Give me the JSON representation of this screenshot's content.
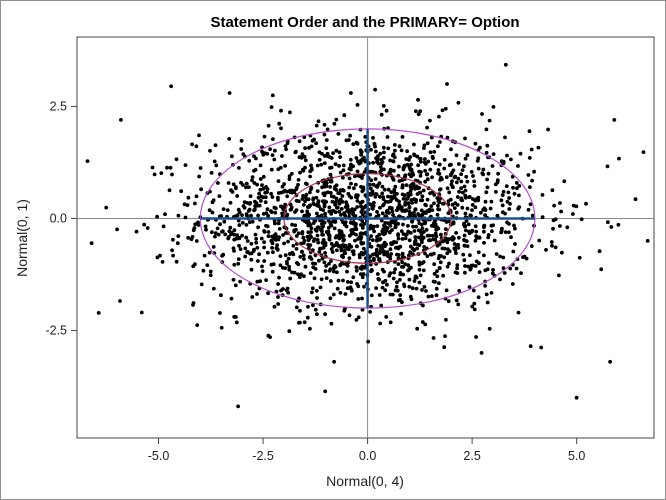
{
  "chart_data": {
    "type": "scatter",
    "title": "Statement Order and the PRIMARY= Option",
    "xlabel": "Normal(0, 4)",
    "ylabel": "Normal(0, 1)",
    "xlim": [
      -6.95,
      6.85
    ],
    "ylim": [
      -4.9,
      4.05
    ],
    "xticks": [
      -5.0,
      -2.5,
      0.0,
      2.5,
      5.0
    ],
    "yticks": [
      -2.5,
      0.0,
      2.5
    ],
    "x_tick_labels": [
      "-5.0",
      "-2.5",
      "0.0",
      "2.5",
      "5.0"
    ],
    "y_tick_labels": [
      "-2.5",
      "0.0",
      "2.5"
    ],
    "reference_lines": {
      "x": 0,
      "y": 0
    },
    "grid": false,
    "point_count": 2000,
    "distribution": {
      "x_mean": 0,
      "x_sd": 2,
      "y_mean": 0,
      "y_sd": 1
    },
    "outliers": [
      {
        "x": -6.7,
        "y": 1.28
      },
      {
        "x": -6.6,
        "y": -0.55
      },
      {
        "x": -5.9,
        "y": 2.2
      },
      {
        "x": -5.4,
        "y": -2.1
      },
      {
        "x": 5.9,
        "y": 2.2
      },
      {
        "x": 6.6,
        "y": 1.48
      },
      {
        "x": 6.7,
        "y": -0.5
      },
      {
        "x": 5.0,
        "y": -4.0
      },
      {
        "x": 5.8,
        "y": -3.2
      },
      {
        "x": -4.7,
        "y": 2.95
      },
      {
        "x": -3.3,
        "y": 2.8
      },
      {
        "x": 1.9,
        "y": 3.0
      },
      {
        "x": 3.9,
        "y": -2.85
      },
      {
        "x": -0.8,
        "y": -3.2
      },
      {
        "x": -0.4,
        "y": 2.8
      }
    ],
    "ellipses": [
      {
        "name": "2 SD",
        "cx": 0,
        "cy": 0,
        "rx": 4,
        "ry": 2,
        "color": "#b64fcf"
      },
      {
        "name": "1 SD",
        "cx": 0,
        "cy": 0,
        "rx": 2,
        "ry": 1,
        "color": "#b0334a"
      }
    ],
    "axis_segments": [
      {
        "x1": -4,
        "y1": 0,
        "x2": 4,
        "y2": 0,
        "color": "#1f4e8c"
      },
      {
        "x1": 0,
        "y1": -2,
        "x2": 0,
        "y2": 2,
        "color": "#1f4e8c"
      }
    ],
    "colors": {
      "points": "#000000",
      "reference": "#8a8a8a",
      "frame": "#444444"
    }
  }
}
